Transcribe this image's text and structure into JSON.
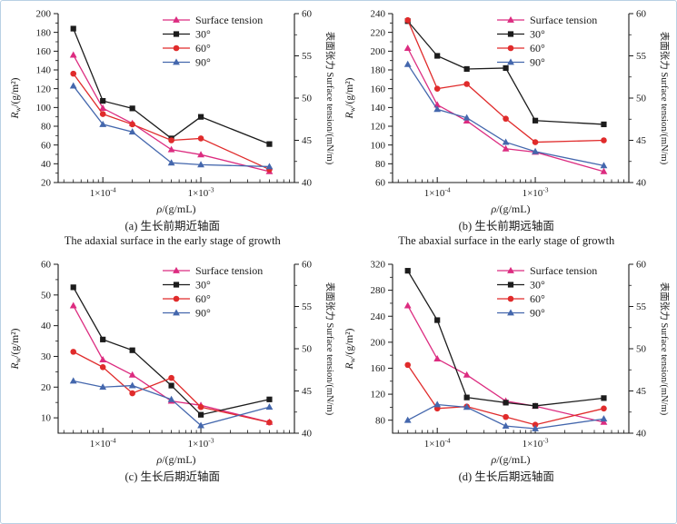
{
  "figure": {
    "frame_border_color": "#b9d0e4",
    "background": "#ffffff"
  },
  "axes_shared": {
    "x_scale": "log",
    "x_range": [
      3.5e-05,
      0.009
    ],
    "x_points": [
      5e-05,
      0.0001,
      0.0002,
      0.0005,
      0.001,
      0.005
    ],
    "x_major_ticks": [
      {
        "value": 0.0001,
        "base": "1×10",
        "exp": "-4"
      },
      {
        "value": 0.001,
        "base": "1×10",
        "exp": "-3"
      }
    ],
    "xlabel": {
      "var": "ρ",
      "rest": "/(g/mL)"
    },
    "left_label": {
      "var": "R",
      "sub": "w",
      "rest": "/(g/m²)"
    },
    "right_label": "表面张力 Surface tension/(mN/m)",
    "right_axis": {
      "min": 40,
      "max": 60,
      "major": 5,
      "minor": 2.5
    },
    "legend": [
      {
        "label": "Surface tension",
        "color": "#DC2C80",
        "marker": "triangle"
      },
      {
        "label": "30°",
        "color": "#1c1c1c",
        "marker": "square"
      },
      {
        "label": "60°",
        "color": "#E02B2B",
        "marker": "circle"
      },
      {
        "label": "90°",
        "color": "#4467AD",
        "marker": "triangle"
      }
    ]
  },
  "chart_data": [
    {
      "id": "a",
      "type": "line",
      "title": "",
      "caption_zh": "(a) 生长前期近轴面",
      "caption_en": "The adaxial surface in the early stage of growth",
      "left_axis": {
        "min": 20,
        "max": 200,
        "major": 20,
        "minor": 10
      },
      "series": [
        {
          "name": "Surface tension",
          "axis": "right",
          "marker": "triangle",
          "color": "#DC2C80",
          "values": [
            55.1,
            48.8,
            47.0,
            43.9,
            43.3,
            41.3
          ]
        },
        {
          "name": "30°",
          "axis": "left",
          "marker": "square",
          "color": "#1c1c1c",
          "values": [
            184,
            107,
            99,
            67,
            90,
            61
          ]
        },
        {
          "name": "60°",
          "axis": "left",
          "marker": "circle",
          "color": "#E02B2B",
          "values": [
            136,
            93,
            82,
            65,
            67,
            34
          ]
        },
        {
          "name": "90°",
          "axis": "left",
          "marker": "triangle",
          "color": "#4467AD",
          "values": [
            123,
            82,
            74,
            41,
            39,
            37
          ]
        }
      ]
    },
    {
      "id": "b",
      "type": "line",
      "title": "",
      "caption_zh": "(b) 生长前期远轴面",
      "caption_en": "The abaxial surface in the early stage of growth",
      "left_axis": {
        "min": 60,
        "max": 240,
        "major": 20,
        "minor": 10
      },
      "series": [
        {
          "name": "Surface tension",
          "axis": "right",
          "marker": "triangle",
          "color": "#DC2C80",
          "values": [
            55.9,
            49.2,
            47.3,
            44.0,
            43.6,
            41.3
          ]
        },
        {
          "name": "30°",
          "axis": "left",
          "marker": "square",
          "color": "#1c1c1c",
          "values": [
            232,
            195,
            181,
            182,
            126,
            122
          ]
        },
        {
          "name": "60°",
          "axis": "left",
          "marker": "circle",
          "color": "#E02B2B",
          "values": [
            233,
            160,
            165,
            128,
            103,
            105
          ]
        },
        {
          "name": "90°",
          "axis": "left",
          "marker": "triangle",
          "color": "#4467AD",
          "values": [
            186,
            138,
            129,
            103,
            93,
            78
          ]
        }
      ]
    },
    {
      "id": "c",
      "type": "line",
      "title": "",
      "caption_zh": "(c) 生长后期近轴面",
      "left_axis": {
        "min": 5,
        "max": 60,
        "major": 10,
        "minor": 5,
        "first_major": 10
      },
      "series": [
        {
          "name": "Surface tension",
          "axis": "right",
          "marker": "triangle",
          "color": "#DC2C80",
          "values": [
            55.1,
            48.7,
            46.9,
            43.8,
            43.3,
            41.3
          ]
        },
        {
          "name": "30°",
          "axis": "left",
          "marker": "square",
          "color": "#1c1c1c",
          "values": [
            52.5,
            35.5,
            32,
            20.5,
            11,
            16
          ]
        },
        {
          "name": "60°",
          "axis": "left",
          "marker": "circle",
          "color": "#E02B2B",
          "values": [
            31.5,
            26.5,
            18,
            23,
            13.5,
            8.5
          ]
        },
        {
          "name": "90°",
          "axis": "left",
          "marker": "triangle",
          "color": "#4467AD",
          "values": [
            22,
            20,
            20.5,
            16,
            7.5,
            13.5
          ]
        }
      ]
    },
    {
      "id": "d",
      "type": "line",
      "title": "",
      "caption_zh": "(d) 生长后期远轴面",
      "left_axis": {
        "min": 60,
        "max": 320,
        "major": 40,
        "minor": 20,
        "first_major": 80
      },
      "series": [
        {
          "name": "Surface tension",
          "axis": "right",
          "marker": "triangle",
          "color": "#DC2C80",
          "values": [
            55.1,
            48.8,
            46.9,
            43.8,
            43.2,
            41.3
          ]
        },
        {
          "name": "30°",
          "axis": "left",
          "marker": "square",
          "color": "#1c1c1c",
          "values": [
            310,
            234,
            115,
            107,
            102,
            114
          ]
        },
        {
          "name": "60°",
          "axis": "left",
          "marker": "circle",
          "color": "#E02B2B",
          "values": [
            165,
            98,
            101,
            85,
            73,
            98
          ]
        },
        {
          "name": "90°",
          "axis": "left",
          "marker": "triangle",
          "color": "#4467AD",
          "values": [
            80,
            104,
            100,
            71,
            67,
            82
          ]
        }
      ]
    }
  ]
}
